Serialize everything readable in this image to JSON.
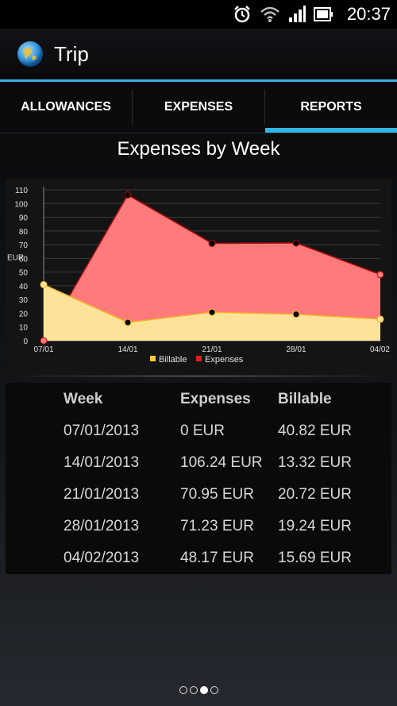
{
  "status_bar": {
    "time": "20:37",
    "icons": [
      "alarm-icon",
      "wifi-icon",
      "signal-icon",
      "battery-icon"
    ]
  },
  "app": {
    "title": "Trip",
    "icon": "globe-icon"
  },
  "tabs": [
    {
      "label": "ALLOWANCES",
      "active": false
    },
    {
      "label": "EXPENSES",
      "active": false
    },
    {
      "label": "REPORTS",
      "active": true
    }
  ],
  "report": {
    "title": "Expenses by Week"
  },
  "chart_data": {
    "type": "area",
    "categories": [
      "07/01",
      "14/01",
      "21/01",
      "28/01",
      "04/02"
    ],
    "series": [
      {
        "name": "Billable",
        "values": [
          40.82,
          13.32,
          20.72,
          19.24,
          15.69
        ],
        "color": "#ffcc33"
      },
      {
        "name": "Expenses",
        "values": [
          0,
          106.24,
          70.95,
          71.23,
          48.17
        ],
        "color": "#e02020"
      }
    ],
    "ylabel": "EUR",
    "ylim": [
      0,
      110
    ],
    "yticks": [
      0,
      10,
      20,
      30,
      40,
      50,
      60,
      70,
      80,
      90,
      100,
      110
    ],
    "grid": true,
    "legend": "bottom"
  },
  "table": {
    "headers": [
      "Week",
      "Expenses",
      "Billable"
    ],
    "rows": [
      [
        "07/01/2013",
        "0 EUR",
        "40.82 EUR"
      ],
      [
        "14/01/2013",
        "106.24 EUR",
        "13.32 EUR"
      ],
      [
        "21/01/2013",
        "70.95 EUR",
        "20.72 EUR"
      ],
      [
        "28/01/2013",
        "71.23 EUR",
        "19.24 EUR"
      ],
      [
        "04/02/2013",
        "48.17 EUR",
        "15.69 EUR"
      ]
    ]
  },
  "pager": {
    "pages": 4,
    "current": 3
  }
}
